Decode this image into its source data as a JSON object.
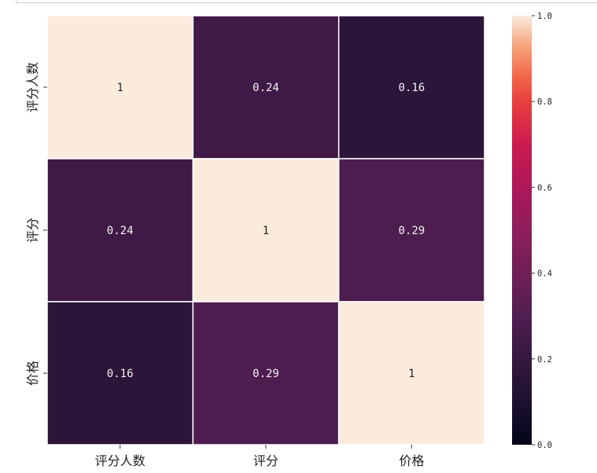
{
  "chart_data": {
    "type": "heatmap",
    "title": "",
    "xlabel": "",
    "ylabel": "",
    "x_labels": [
      "评分人数",
      "评分",
      "价格"
    ],
    "y_labels": [
      "评分人数",
      "评分",
      "价格"
    ],
    "matrix": [
      [
        1,
        0.24,
        0.16
      ],
      [
        0.24,
        1,
        0.29
      ],
      [
        0.16,
        0.29,
        1
      ]
    ],
    "cell_labels": [
      [
        "1",
        "0.24",
        "0.16"
      ],
      [
        "0.24",
        "1",
        "0.29"
      ],
      [
        "0.16",
        "0.29",
        "1"
      ]
    ],
    "colorbar": {
      "range": [
        0.0,
        1.0
      ],
      "ticks": [
        0.0,
        0.2,
        0.4,
        0.6,
        0.8,
        1.0
      ],
      "tick_labels": [
        "0.0",
        "0.2",
        "0.4",
        "0.6",
        "0.8",
        "1.0"
      ],
      "colormap": "rocket"
    },
    "grid_lines_color": "#ffffff"
  }
}
